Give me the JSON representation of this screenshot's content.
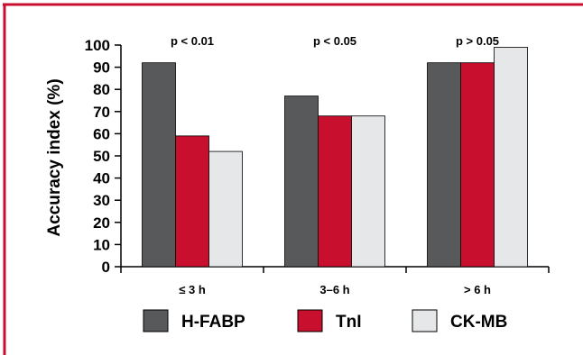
{
  "chart_data": {
    "type": "bar",
    "ylabel": "Accuracy index (%)",
    "ylim": [
      0,
      100
    ],
    "yticks": [
      "0",
      "10",
      "20",
      "30",
      "40",
      "50",
      "60",
      "70",
      "80",
      "90",
      "100"
    ],
    "categories": [
      "≤ 3 h",
      "3–6 h",
      "> 6 h"
    ],
    "annotations": [
      "p < 0.01",
      "p < 0.05",
      "p > 0.05"
    ],
    "series": [
      {
        "name": "H-FABP",
        "color": "#58595b",
        "values": [
          92,
          77,
          92
        ]
      },
      {
        "name": "TnI",
        "color": "#c8102e",
        "values": [
          59,
          68,
          92
        ]
      },
      {
        "name": "CK-MB",
        "color": "#e6e7e8",
        "values": [
          52,
          68,
          99
        ]
      }
    ],
    "legend": "bottom",
    "grid": false
  },
  "colors": {
    "frame": "#c8102e",
    "axis": "#000000"
  }
}
